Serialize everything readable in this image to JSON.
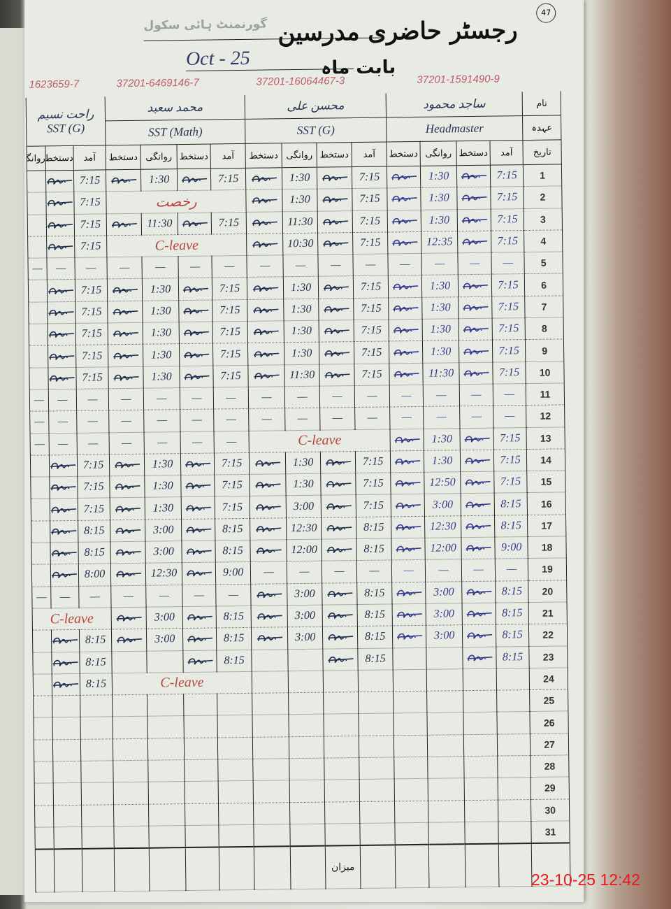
{
  "header": {
    "school_stamp": "گورنمنٹ ہائی سکول",
    "title": "رجسٹر حاضری مدرسین",
    "page_number": "47",
    "month_label": "بابت ماہ",
    "month_value": "Oct - 25"
  },
  "row_labels": {
    "name": "نام",
    "designation": "عہدہ",
    "date": "تاریخ"
  },
  "column_labels": {
    "arrival": "آمد",
    "signature": "دستخط",
    "departure": "روانگی"
  },
  "teachers": {
    "hm": {
      "name": "ساجد محمود",
      "designation": "Headmaster",
      "cnic": "37201-1591490-9"
    },
    "g": {
      "name": "محسن علی",
      "designation": "SST (G)",
      "cnic": "37201-16064467-3"
    },
    "m": {
      "name": "محمد سعید",
      "designation": "SST (Math)",
      "cnic": "37201-6469146-7"
    },
    "t4": {
      "name": "راحت نسیم",
      "designation": "SST (G)",
      "cnic": "1623659-7"
    }
  },
  "ink_colors": {
    "blue": "#363c8c",
    "black": "#22304f",
    "red": "#b8463c"
  },
  "rows": [
    {
      "date": "1",
      "hm": {
        "in": "7:15",
        "out": "1:30"
      },
      "g": {
        "in": "7:15",
        "out": "1:30"
      },
      "m": {
        "in": "7:15",
        "out": "1:30"
      },
      "t4": {
        "in": "7:15"
      }
    },
    {
      "date": "2",
      "hm": {
        "in": "7:15",
        "out": "1:30"
      },
      "g": {
        "in": "7:15",
        "out": "1:30"
      },
      "m": {
        "note": "رخصت"
      },
      "t4": {
        "in": "7:15"
      }
    },
    {
      "date": "3",
      "hm": {
        "in": "7:15",
        "out": "1:30"
      },
      "g": {
        "in": "7:15",
        "out": "11:30"
      },
      "m": {
        "in": "7:15",
        "out": "11:30"
      },
      "t4": {
        "in": "7:15"
      }
    },
    {
      "date": "4",
      "hm": {
        "in": "7:15",
        "out": "12:35"
      },
      "g": {
        "in": "7:15",
        "out": "10:30"
      },
      "m": {
        "note": "C-leave"
      },
      "t4": {
        "in": "7:15"
      }
    },
    {
      "date": "5",
      "hm": {
        "in": "—",
        "out": "—",
        "dash": true
      },
      "g": {
        "in": "—",
        "out": "—",
        "dash": true
      },
      "m": {
        "in": "—",
        "out": "—",
        "dash": true
      },
      "t4": {
        "in": "—",
        "dash": true
      }
    },
    {
      "date": "6",
      "hm": {
        "in": "7:15",
        "out": "1:30"
      },
      "g": {
        "in": "7:15",
        "out": "1:30"
      },
      "m": {
        "in": "7:15",
        "out": "1:30"
      },
      "t4": {
        "in": "7:15"
      }
    },
    {
      "date": "7",
      "hm": {
        "in": "7:15",
        "out": "1:30"
      },
      "g": {
        "in": "7:15",
        "out": "1:30"
      },
      "m": {
        "in": "7:15",
        "out": "1:30"
      },
      "t4": {
        "in": "7:15"
      }
    },
    {
      "date": "8",
      "hm": {
        "in": "7:15",
        "out": "1:30"
      },
      "g": {
        "in": "7:15",
        "out": "1:30"
      },
      "m": {
        "in": "7:15",
        "out": "1:30"
      },
      "t4": {
        "in": "7:15"
      }
    },
    {
      "date": "9",
      "hm": {
        "in": "7:15",
        "out": "1:30"
      },
      "g": {
        "in": "7:15",
        "out": "1:30"
      },
      "m": {
        "in": "7:15",
        "out": "1:30"
      },
      "t4": {
        "in": "7:15"
      }
    },
    {
      "date": "10",
      "hm": {
        "in": "7:15",
        "out": "11:30"
      },
      "g": {
        "in": "7:15",
        "out": "11:30"
      },
      "m": {
        "in": "7:15",
        "out": "1:30"
      },
      "t4": {
        "in": "7:15"
      }
    },
    {
      "date": "11",
      "hm": {
        "in": "—",
        "out": "—",
        "dash": true
      },
      "g": {
        "in": "—",
        "out": "—",
        "dash": true
      },
      "m": {
        "in": "—",
        "out": "—",
        "dash": true
      },
      "t4": {
        "in": "—",
        "dash": true
      }
    },
    {
      "date": "12",
      "hm": {
        "in": "—",
        "out": "—",
        "dash": true
      },
      "g": {
        "in": "—",
        "out": "—",
        "dash": true
      },
      "m": {
        "in": "—",
        "out": "—",
        "dash": true
      },
      "t4": {
        "in": "—",
        "dash": true
      }
    },
    {
      "date": "13",
      "hm": {
        "in": "7:15",
        "out": "1:30"
      },
      "g": {
        "note": "C-leave"
      },
      "m": {
        "in": "—",
        "out": "—",
        "dash": true
      },
      "t4": {
        "in": "—",
        "dash": true
      }
    },
    {
      "date": "14",
      "hm": {
        "in": "7:15",
        "out": "1:30"
      },
      "g": {
        "in": "7:15",
        "out": "1:30"
      },
      "m": {
        "in": "7:15",
        "out": "1:30"
      },
      "t4": {
        "in": "7:15"
      }
    },
    {
      "date": "15",
      "hm": {
        "in": "7:15",
        "out": "12:50"
      },
      "g": {
        "in": "7:15",
        "out": "1:30"
      },
      "m": {
        "in": "7:15",
        "out": "1:30"
      },
      "t4": {
        "in": "7:15"
      }
    },
    {
      "date": "16",
      "hm": {
        "in": "8:15",
        "out": "3:00"
      },
      "g": {
        "in": "7:15",
        "out": "3:00"
      },
      "m": {
        "in": "7:15",
        "out": "1:30"
      },
      "t4": {
        "in": "7:15"
      }
    },
    {
      "date": "17",
      "hm": {
        "in": "8:15",
        "out": "12:30"
      },
      "g": {
        "in": "8:15",
        "out": "12:30"
      },
      "m": {
        "in": "8:15",
        "out": "3:00"
      },
      "t4": {
        "in": "8:15"
      }
    },
    {
      "date": "18",
      "hm": {
        "in": "9:00",
        "out": "12:00"
      },
      "g": {
        "in": "8:15",
        "out": "12:00"
      },
      "m": {
        "in": "8:15",
        "out": "3:00"
      },
      "t4": {
        "in": "8:15"
      }
    },
    {
      "date": "19",
      "hm": {
        "in": "—",
        "out": "—",
        "dash": true
      },
      "g": {
        "in": "—",
        "out": "—",
        "dash": true
      },
      "m": {
        "in": "9:00",
        "out": "12:30"
      },
      "t4": {
        "in": "8:00"
      }
    },
    {
      "date": "20",
      "hm": {
        "in": "8:15",
        "out": "3:00"
      },
      "g": {
        "in": "8:15",
        "out": "3:00"
      },
      "m": {
        "in": "—",
        "out": "—",
        "dash": true
      },
      "t4": {
        "in": "—",
        "dash": true
      }
    },
    {
      "date": "21",
      "hm": {
        "in": "8:15",
        "out": "3:00"
      },
      "g": {
        "in": "8:15",
        "out": "3:00"
      },
      "m": {
        "in": "8:15",
        "out": "3:00"
      },
      "t4": {
        "note": "C-leave"
      }
    },
    {
      "date": "22",
      "hm": {
        "in": "8:15",
        "out": "3:00"
      },
      "g": {
        "in": "8:15",
        "out": "3:00"
      },
      "m": {
        "in": "8:15",
        "out": "3:00"
      },
      "t4": {
        "in": "8:15"
      }
    },
    {
      "date": "23",
      "hm": {
        "in": "8:15",
        "out": ""
      },
      "g": {
        "in": "8:15",
        "out": ""
      },
      "m": {
        "in": "8:15",
        "out": ""
      },
      "t4": {
        "in": "8:15"
      }
    },
    {
      "date": "24",
      "hm": {
        "in": "",
        "out": "",
        "blank": true
      },
      "g": {
        "in": "",
        "out": "",
        "blank": true
      },
      "m": {
        "note": "C-leave"
      },
      "t4": {
        "in": "8:15"
      }
    },
    {
      "date": "25",
      "hm": {
        "in": "",
        "out": "",
        "blank": true
      },
      "g": {
        "in": "",
        "out": "",
        "blank": true
      },
      "m": {
        "in": "",
        "out": "",
        "blank": true
      },
      "t4": {
        "in": "",
        "blank": true
      }
    },
    {
      "date": "26",
      "hm": {
        "in": "",
        "out": "",
        "blank": true
      },
      "g": {
        "in": "",
        "out": "",
        "blank": true
      },
      "m": {
        "in": "",
        "out": "",
        "blank": true
      },
      "t4": {
        "in": "",
        "blank": true
      }
    },
    {
      "date": "27",
      "hm": {
        "in": "",
        "out": "",
        "blank": true
      },
      "g": {
        "in": "",
        "out": "",
        "blank": true
      },
      "m": {
        "in": "",
        "out": "",
        "blank": true
      },
      "t4": {
        "in": "",
        "blank": true
      }
    },
    {
      "date": "28",
      "hm": {
        "in": "",
        "out": "",
        "blank": true
      },
      "g": {
        "in": "",
        "out": "",
        "blank": true
      },
      "m": {
        "in": "",
        "out": "",
        "blank": true
      },
      "t4": {
        "in": "",
        "blank": true
      }
    },
    {
      "date": "29",
      "hm": {
        "in": "",
        "out": "",
        "blank": true
      },
      "g": {
        "in": "",
        "out": "",
        "blank": true
      },
      "m": {
        "in": "",
        "out": "",
        "blank": true
      },
      "t4": {
        "in": "",
        "blank": true
      }
    },
    {
      "date": "30",
      "hm": {
        "in": "",
        "out": "",
        "blank": true
      },
      "g": {
        "in": "",
        "out": "",
        "blank": true
      },
      "m": {
        "in": "",
        "out": "",
        "blank": true
      },
      "t4": {
        "in": "",
        "blank": true
      }
    },
    {
      "date": "31",
      "hm": {
        "in": "",
        "out": "",
        "blank": true
      },
      "g": {
        "in": "",
        "out": "",
        "blank": true
      },
      "m": {
        "in": "",
        "out": "",
        "blank": true
      },
      "t4": {
        "in": "",
        "blank": true
      }
    }
  ],
  "footer": {
    "total_label": "میزان",
    "timestamp": "23-10-25 12:42"
  }
}
